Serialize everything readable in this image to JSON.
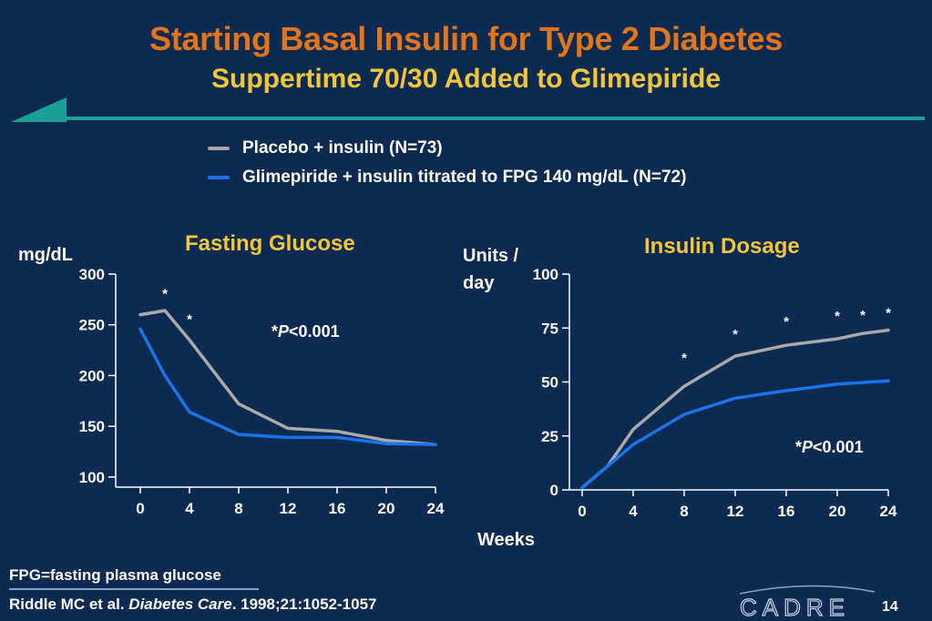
{
  "slide": {
    "title": "Starting Basal Insulin for Type 2 Diabetes",
    "subtitle": "Suppertime 70/30 Added to Glimepiride",
    "legend": [
      {
        "label": "Placebo + insulin (N=73)",
        "color": "#a9a9a9"
      },
      {
        "label": "Glimepiride + insulin titrated to FPG 140 mg/dL (N=72)",
        "color": "#1a74e8"
      }
    ],
    "footnote_definition": "FPG=fasting plasma glucose",
    "citation": {
      "authors": "Riddle MC et al. ",
      "journal": "Diabetes Care",
      "details": ". 1998;21:1052-1057"
    },
    "logo_text": "CADRE",
    "page_number": "14",
    "x_axis_label": "Weeks",
    "colors": {
      "background": "#0c2a52",
      "title": "#e0751c",
      "subtitle": "#f3c63a",
      "accent_bar": "#1aa094",
      "placebo": "#a9a9a9",
      "glimepiride": "#1a74e8"
    }
  },
  "chart_data": [
    {
      "type": "line",
      "title": "Fasting Glucose",
      "ylabel": "mg/dL",
      "xlabel": "Weeks",
      "ylim": [
        90,
        300
      ],
      "xlim": [
        -2,
        24
      ],
      "x_ticks": [
        0,
        4,
        8,
        12,
        16,
        20,
        24
      ],
      "y_ticks": [
        100,
        150,
        200,
        250,
        300
      ],
      "series": [
        {
          "name": "Placebo + insulin (N=73)",
          "color": "#a9a9a9",
          "x": [
            0,
            2,
            4,
            8,
            12,
            16,
            20,
            24
          ],
          "y": [
            260,
            264,
            235,
            172,
            148,
            145,
            136,
            132
          ]
        },
        {
          "name": "Glimepiride + insulin titrated to FPG 140 mg/dL (N=72)",
          "color": "#1a74e8",
          "x": [
            0,
            2,
            4,
            8,
            12,
            16,
            20,
            24
          ],
          "y": [
            246,
            200,
            164,
            142,
            139,
            139,
            133,
            132
          ]
        }
      ],
      "significance_markers": [
        {
          "x": 2,
          "y": 276,
          "label": "*"
        },
        {
          "x": 4,
          "y": 251,
          "label": "*"
        }
      ],
      "annotation": {
        "prefix": "*",
        "p_symbol": "P",
        "text": "<0.001"
      }
    },
    {
      "type": "line",
      "title": "Insulin Dosage",
      "ylabel": "Units / day",
      "xlabel": "Weeks",
      "ylim": [
        0,
        100
      ],
      "xlim": [
        -1,
        24
      ],
      "x_ticks": [
        0,
        4,
        8,
        12,
        16,
        20,
        24
      ],
      "y_ticks": [
        0,
        25,
        50,
        75,
        100
      ],
      "series": [
        {
          "name": "Placebo + insulin (N=73)",
          "color": "#a9a9a9",
          "x": [
            0,
            2,
            4,
            8,
            12,
            16,
            20,
            22,
            24
          ],
          "y": [
            1,
            11,
            28,
            48,
            62,
            67,
            70,
            72.5,
            74
          ]
        },
        {
          "name": "Glimepiride + insulin titrated to FPG 140 mg/dL (N=72)",
          "color": "#1a74e8",
          "x": [
            0,
            2,
            4,
            8,
            12,
            16,
            20,
            24
          ],
          "y": [
            1,
            11,
            21,
            35,
            42.5,
            46,
            49,
            50.5
          ]
        }
      ],
      "significance_markers": [
        {
          "x": 8,
          "y": 59,
          "label": "*"
        },
        {
          "x": 12,
          "y": 70,
          "label": "*"
        },
        {
          "x": 16,
          "y": 76,
          "label": "*"
        },
        {
          "x": 20,
          "y": 78.5,
          "label": "*"
        },
        {
          "x": 22,
          "y": 79,
          "label": "*"
        },
        {
          "x": 24,
          "y": 80,
          "label": "*"
        }
      ],
      "annotation": {
        "prefix": "*",
        "p_symbol": "P",
        "text": "<0.001"
      }
    }
  ]
}
